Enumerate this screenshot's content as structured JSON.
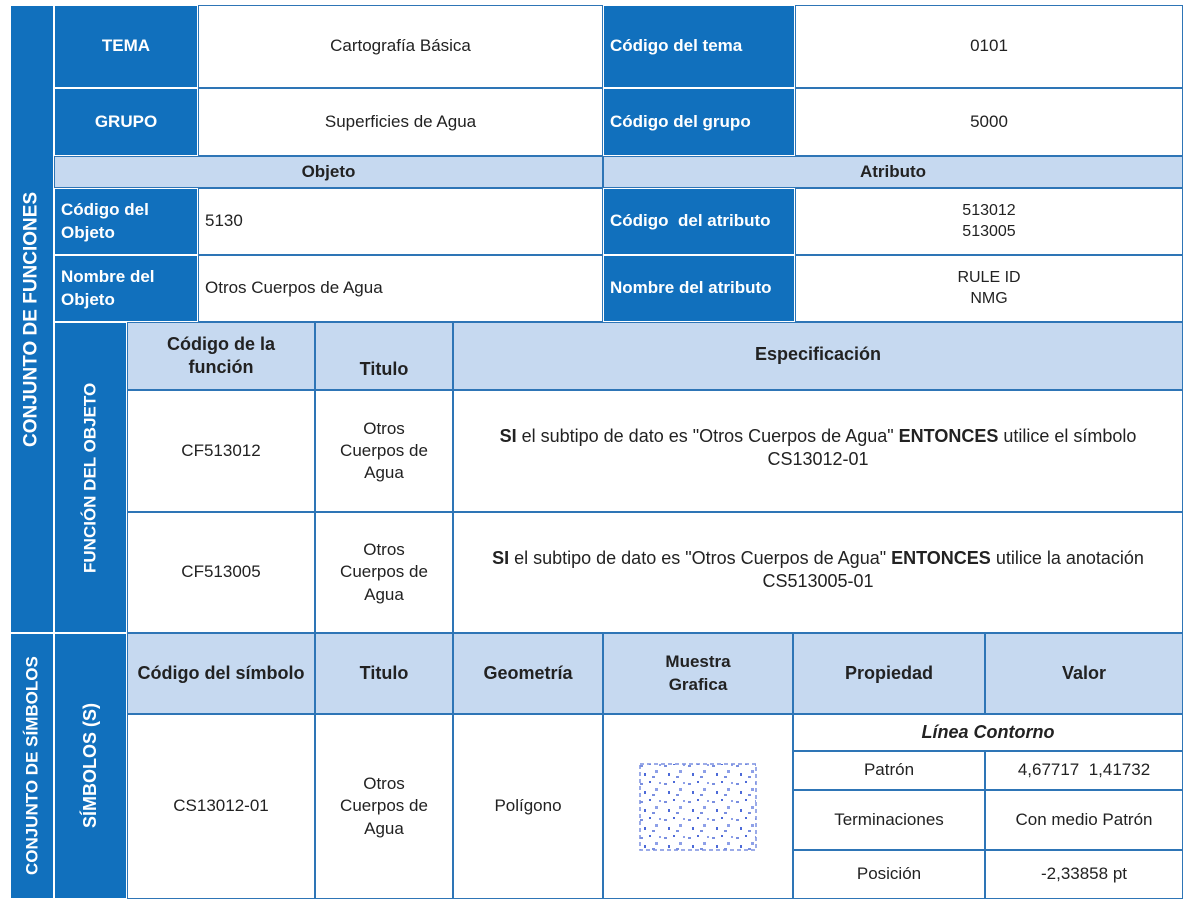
{
  "header": {
    "tema_label": "TEMA",
    "tema": "Cartografía Básica",
    "codigo_tema_label": "Código del tema",
    "codigo_tema": "0101",
    "grupo_label": "GRUPO",
    "grupo": "Superficies de Agua",
    "codigo_grupo_label": "Código del grupo",
    "codigo_grupo": "5000"
  },
  "section_labels": {
    "conjunto_funciones": "CONJUNTO DE FUNCIONES",
    "funcion_objeto": "FUNCIÓN DEL OBJETO",
    "conjunto_simbolos": "CONJUNTO DE SÍMBOLOS",
    "simbolos": "SÍMBOLOS (S)"
  },
  "objeto": {
    "header": "Objeto",
    "codigo_label": "Código del Objeto",
    "codigo": "5130",
    "nombre_label": "Nombre del Objeto",
    "nombre": "Otros Cuerpos de Agua"
  },
  "atributo": {
    "header": "Atributo",
    "codigo_label": "Código  del atributo",
    "codigos": [
      "513012",
      "513005"
    ],
    "nombre_label": "Nombre del atributo",
    "nombres": [
      "RULE ID",
      "NMG"
    ]
  },
  "functions": {
    "columns": [
      "Código de la función",
      "Titulo",
      "Especificación"
    ],
    "rows": [
      {
        "code": "CF513012",
        "title": "Otros Cuerpos de Agua",
        "if": "SI",
        "condition": "el subtipo de dato es \"Otros Cuerpos de Agua\"",
        "then": "ENTONCES",
        "action": "utilice el símbolo CS13012-01"
      },
      {
        "code": "CF513005",
        "title": "Otros Cuerpos de Agua",
        "if": "SI",
        "condition": "el subtipo de dato es \"Otros Cuerpos de Agua\"",
        "then": "ENTONCES",
        "action": "utilice la anotación CS513005-01"
      }
    ]
  },
  "symbols": {
    "columns": [
      "Código del símbolo",
      "Titulo",
      "Geometría",
      "Muestra Grafica",
      "Propiedad",
      "Valor"
    ],
    "row": {
      "code": "CS13012-01",
      "title": "Otros Cuerpos de Agua",
      "geometry": "Polígono",
      "property_group": "Línea Contorno",
      "properties": [
        {
          "name": "Patrón",
          "value": "4,67717  1,41732"
        },
        {
          "name": "Terminaciones",
          "value": "Con medio Patrón"
        },
        {
          "name": "Posición",
          "value": "-2,33858 pt"
        }
      ]
    }
  }
}
